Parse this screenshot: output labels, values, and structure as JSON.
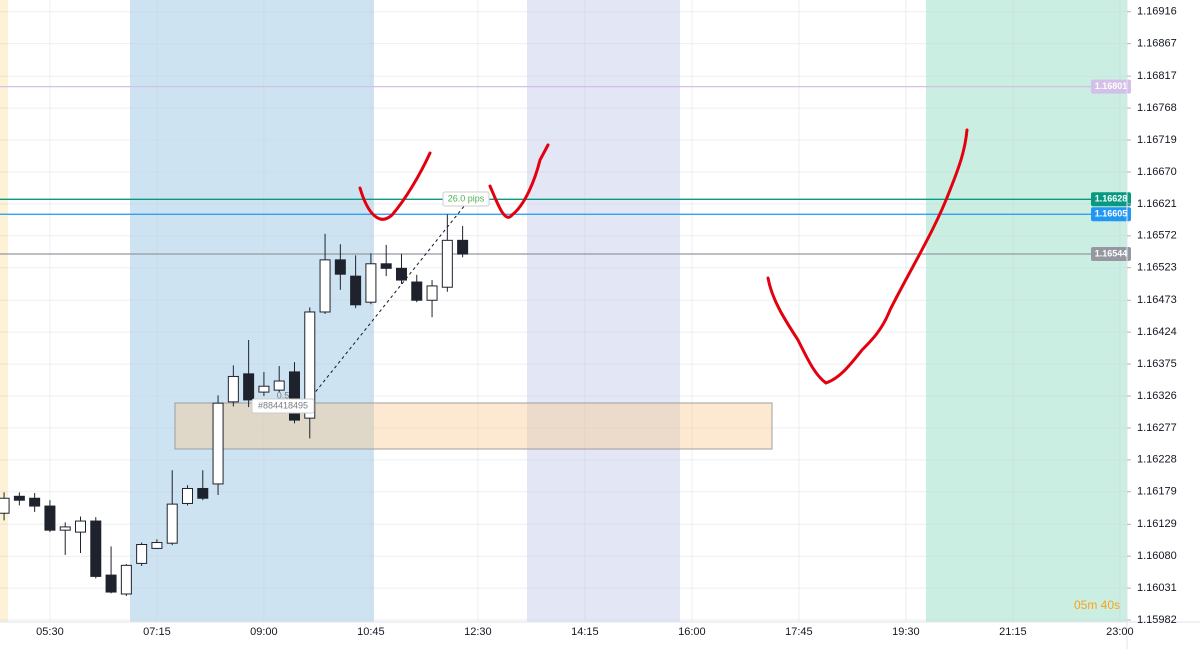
{
  "chart_data": {
    "type": "candlestick",
    "x": [
      "04:45",
      "05:00",
      "05:15",
      "05:30",
      "05:45",
      "06:00",
      "06:15",
      "06:30",
      "06:45",
      "07:00",
      "07:15",
      "07:30",
      "07:45",
      "08:00",
      "08:15",
      "08:30",
      "08:45",
      "09:00",
      "09:15",
      "09:30",
      "09:45",
      "10:00",
      "10:15",
      "10:30",
      "10:45",
      "11:00",
      "11:15",
      "11:30",
      "11:45",
      "12:00",
      "12:15"
    ],
    "open": [
      1.16146,
      1.16172,
      1.16169,
      1.16157,
      1.1612,
      1.16117,
      1.16134,
      1.16051,
      1.16022,
      1.16069,
      1.16092,
      1.161,
      1.16161,
      1.16184,
      1.16191,
      1.16317,
      1.1636,
      1.16332,
      1.16335,
      1.16363,
      1.16292,
      1.16455,
      1.16535,
      1.1651,
      1.1647,
      1.16529,
      1.16522,
      1.16501,
      1.16473,
      1.16493,
      1.16565
    ],
    "high": [
      1.16178,
      1.16178,
      1.16177,
      1.16166,
      1.16132,
      1.16141,
      1.1614,
      1.16095,
      1.16068,
      1.16101,
      1.16106,
      1.16212,
      1.16189,
      1.16212,
      1.16327,
      1.16373,
      1.16412,
      1.16363,
      1.16372,
      1.16378,
      1.16462,
      1.16575,
      1.16559,
      1.16542,
      1.16545,
      1.16558,
      1.16544,
      1.16512,
      1.16504,
      1.16605,
      1.16587
    ],
    "low": [
      1.16135,
      1.16158,
      1.16148,
      1.16117,
      1.16082,
      1.16085,
      1.16046,
      1.16023,
      1.16019,
      1.16065,
      1.16091,
      1.16097,
      1.16158,
      1.16166,
      1.16174,
      1.1631,
      1.16309,
      1.16326,
      1.16332,
      1.16284,
      1.16261,
      1.16452,
      1.16489,
      1.16461,
      1.16467,
      1.1651,
      1.16498,
      1.1647,
      1.16447,
      1.16486,
      1.16539
    ],
    "close": [
      1.16169,
      1.16166,
      1.16157,
      1.1612,
      1.16125,
      1.16134,
      1.16049,
      1.16025,
      1.16066,
      1.16098,
      1.16101,
      1.1616,
      1.16184,
      1.16169,
      1.16315,
      1.16356,
      1.1632,
      1.16341,
      1.16349,
      1.16289,
      1.16455,
      1.16535,
      1.16513,
      1.16466,
      1.16529,
      1.16522,
      1.16504,
      1.16473,
      1.16495,
      1.16565,
      1.16544
    ],
    "up_color": "#ffffff",
    "down_color": "#1e222d",
    "xlim": [
      "04:41",
      "23:07"
    ],
    "xticks": [
      "05:30",
      "07:15",
      "09:00",
      "10:45",
      "12:30",
      "14:15",
      "16:00",
      "17:45",
      "19:30",
      "21:15",
      "23:00"
    ],
    "ylim": [
      1.15979,
      1.16934
    ],
    "yticks": [
      1.16916,
      1.16867,
      1.16817,
      1.16768,
      1.16719,
      {
        "value": 1.1667,
        "label": "1.16670"
      },
      1.16621,
      1.16572,
      1.16523,
      1.16473,
      1.16424,
      1.16375,
      1.16326,
      1.16277,
      1.16228,
      1.16179,
      1.16129,
      {
        "value": 1.1608,
        "label": "1.16080"
      },
      1.16031,
      1.15982
    ],
    "grid": true,
    "levels": [
      {
        "value": 1.16801,
        "color": "#d4bfe8"
      },
      {
        "value": 1.16628,
        "color": "#089981"
      },
      {
        "value": 1.16605,
        "color": "#2196f3"
      },
      {
        "value": 1.16544,
        "color": "#9598a1"
      }
    ],
    "annotations": [
      "26.0 pips",
      "0.5",
      "#884418495"
    ],
    "timer": "05m 40s"
  }
}
